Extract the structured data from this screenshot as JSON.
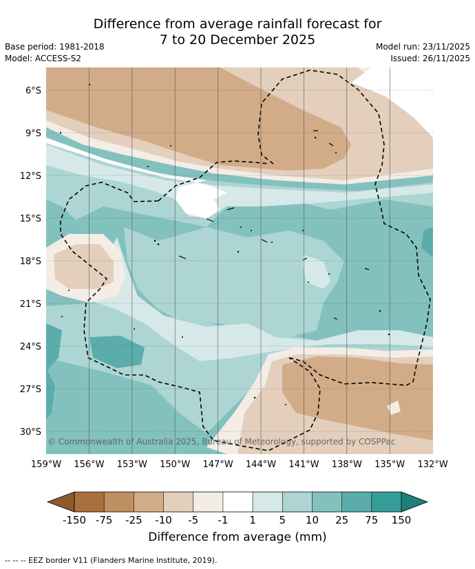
{
  "title": {
    "line1": "Difference from average rainfall forecast for",
    "line2": "7 to 20 December 2025"
  },
  "meta": {
    "base_period": "Base period: 1981-2018",
    "model": "Model: ACCESS-S2",
    "model_run": "Model run: 23/11/2025",
    "issued": "Issued: 26/11/2025"
  },
  "map": {
    "lat_labels": [
      "6°S",
      "9°S",
      "12°S",
      "15°S",
      "18°S",
      "21°S",
      "24°S",
      "27°S",
      "30°S"
    ],
    "lon_labels": [
      "159°W",
      "156°W",
      "153°W",
      "150°W",
      "147°W",
      "144°W",
      "141°W",
      "138°W",
      "135°W",
      "132°W"
    ],
    "copyright": "© Commonwealth of Australia 2025, Bureau of Meteorology, supported by COSPPac"
  },
  "colorbar": {
    "ticks": [
      "-150",
      "-75",
      "-25",
      "-10",
      "-5",
      "-1",
      "1",
      "5",
      "10",
      "25",
      "75",
      "150"
    ],
    "colors": [
      "#a8713b",
      "#bf8f62",
      "#d2ac88",
      "#e3cfbc",
      "#f3ede6",
      "#ffffff",
      "#d6e9e8",
      "#acd5d3",
      "#83c1bf",
      "#5aadab",
      "#369c98"
    ],
    "under_color": "#8c5a2b",
    "over_color": "#1f7f7c",
    "label": "Difference from average (mm)"
  },
  "footnote": "--  --  -- EEZ border V11 (Flanders Marine Institute, 2019)."
}
